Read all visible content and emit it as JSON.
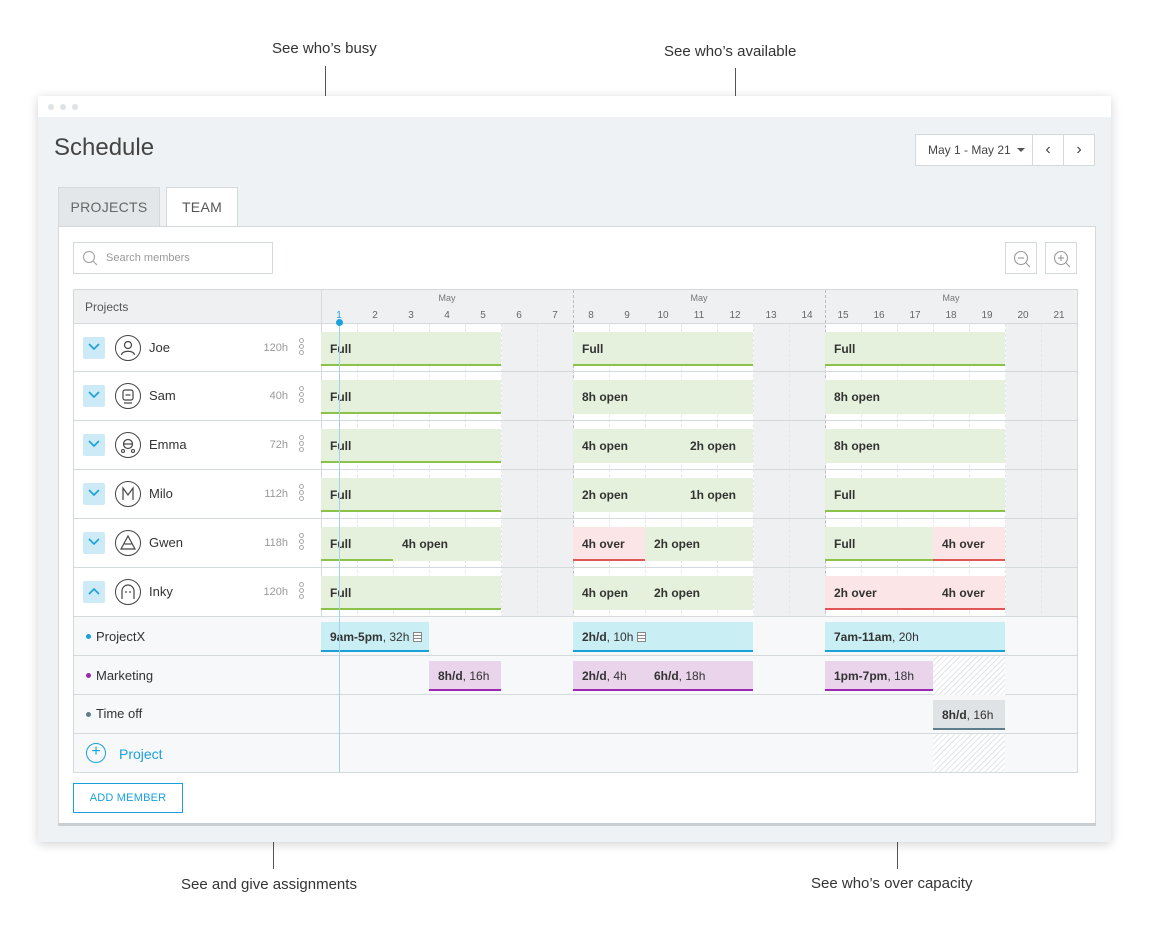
{
  "callouts": {
    "busy": "See who’s busy",
    "available": "See who’s available",
    "assignments": "See and give assignments",
    "over_capacity": "See who’s over capacity"
  },
  "page_title": "Schedule",
  "date_range": "May 1 - May 21",
  "tabs": [
    "PROJECTS",
    "TEAM"
  ],
  "active_tab": "TEAM",
  "search_placeholder": "Search members",
  "grid": {
    "left_header": "Projects",
    "month": "May",
    "days": [
      "1",
      "2",
      "3",
      "4",
      "5",
      "6",
      "7",
      "8",
      "9",
      "10",
      "11",
      "12",
      "13",
      "14",
      "15",
      "16",
      "17",
      "18",
      "19",
      "20",
      "21"
    ],
    "today": "1"
  },
  "members": [
    {
      "name": "Joe",
      "hours": "120h",
      "avatar": "person-icon"
    },
    {
      "name": "Sam",
      "hours": "40h",
      "avatar": "robot-icon"
    },
    {
      "name": "Emma",
      "hours": "72h",
      "avatar": "astronaut-icon"
    },
    {
      "name": "Milo",
      "hours": "112h",
      "avatar": "m-monogram-icon"
    },
    {
      "name": "Gwen",
      "hours": "118h",
      "avatar": "triangle-face-icon"
    },
    {
      "name": "Inky",
      "hours": "120h",
      "avatar": "ghost-icon"
    }
  ],
  "member_bars": {
    "joe": [
      "Full",
      "Full",
      "Full"
    ],
    "sam": [
      "Full",
      "8h open",
      "8h open"
    ],
    "emma": [
      "Full",
      "4h open",
      "2h open",
      "8h open"
    ],
    "milo": [
      "Full",
      "2h open",
      "1h open",
      "Full"
    ],
    "gwen": [
      "Full",
      "4h open",
      "4h over",
      "2h open",
      "Full",
      "4h over"
    ],
    "inky": [
      "Full",
      "4h open",
      "2h open",
      "2h over",
      "4h over"
    ]
  },
  "projects": [
    {
      "name": "ProjectX",
      "color": "#1aa1dc"
    },
    {
      "name": "Marketing",
      "color": "#9c27b0"
    },
    {
      "name": "Time off",
      "color": "#607d8b"
    }
  ],
  "assignments": {
    "projectx": [
      {
        "bold": "9am-5pm",
        "rest": ", 32h"
      },
      {
        "bold": "2h/d",
        "rest": ", 10h"
      },
      {
        "bold": "7am-11am",
        "rest": ", 20h"
      }
    ],
    "marketing": [
      {
        "bold": "8h/d",
        "rest": ", 16h"
      },
      {
        "bold": "2h/d",
        "rest": ", 4h"
      },
      {
        "bold": "6h/d",
        "rest": ", 18h"
      },
      {
        "bold": "1pm-7pm",
        "rest": ", 18h"
      }
    ],
    "timeoff": [
      {
        "bold": "8h/d",
        "rest": ", 16h"
      }
    ]
  },
  "add_project_label": "Project",
  "add_member_label": "ADD MEMBER",
  "colors": {
    "accent": "#1aa1dc",
    "full": "#8bc34a",
    "over": "#e05555",
    "projectx": "#1aa1dc",
    "marketing": "#9c27b0",
    "timeoff": "#607d8b"
  }
}
